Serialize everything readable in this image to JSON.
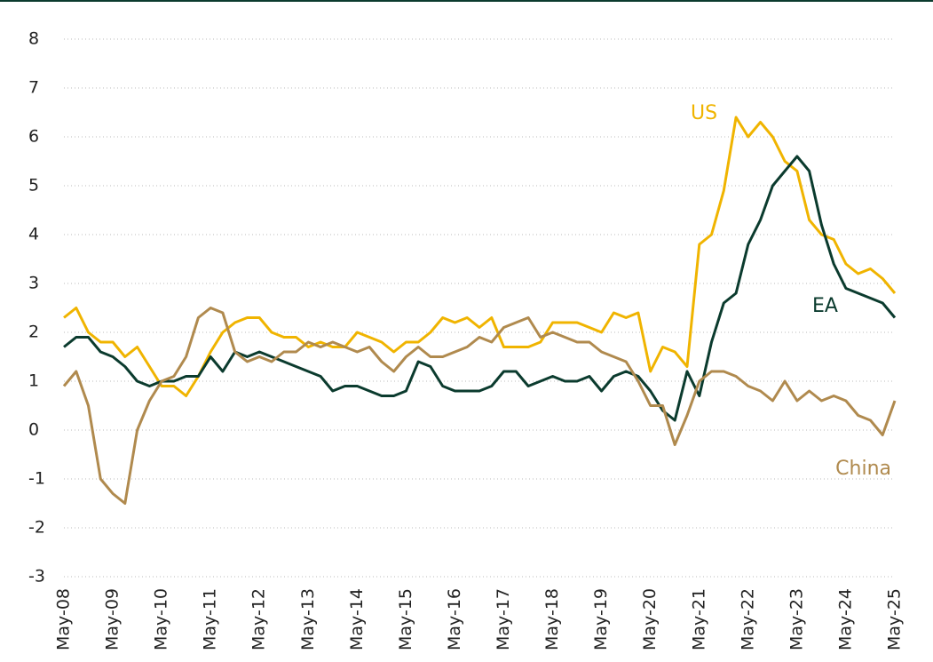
{
  "chart_data": {
    "type": "line",
    "categories": [
      "May-08",
      null,
      null,
      null,
      "May-09",
      null,
      null,
      null,
      "May-10",
      null,
      null,
      null,
      "May-11",
      null,
      null,
      null,
      "May-12",
      null,
      null,
      null,
      "May-13",
      null,
      null,
      null,
      "May-14",
      null,
      null,
      null,
      "May-15",
      null,
      null,
      null,
      "May-16",
      null,
      null,
      null,
      "May-17",
      null,
      null,
      null,
      "May-18",
      null,
      null,
      null,
      "May-19",
      null,
      null,
      null,
      "May-20",
      null,
      null,
      null,
      "May-21",
      null,
      null,
      null,
      "May-22",
      null,
      null,
      null,
      "May-23",
      null,
      null,
      null,
      "May-24",
      null,
      null,
      null,
      "May-25"
    ],
    "series": [
      {
        "name": "US",
        "color": "#f0b400",
        "values": [
          2.3,
          2.5,
          2.0,
          1.8,
          1.8,
          1.5,
          1.7,
          1.3,
          0.9,
          0.9,
          0.7,
          1.1,
          1.6,
          2.0,
          2.2,
          2.3,
          2.3,
          2.0,
          1.9,
          1.9,
          1.7,
          1.8,
          1.7,
          1.7,
          2.0,
          1.9,
          1.8,
          1.6,
          1.8,
          1.8,
          2.0,
          2.3,
          2.2,
          2.3,
          2.1,
          2.3,
          1.7,
          1.7,
          1.7,
          1.8,
          2.2,
          2.2,
          2.2,
          2.1,
          2.0,
          2.4,
          2.3,
          2.4,
          1.2,
          1.7,
          1.6,
          1.3,
          3.8,
          4.0,
          4.9,
          6.4,
          6.0,
          6.3,
          6.0,
          5.5,
          5.3,
          4.3,
          4.0,
          3.9,
          3.4,
          3.2,
          3.3,
          3.1,
          2.8
        ]
      },
      {
        "name": "EA",
        "color": "#0b3b2e",
        "values": [
          1.7,
          1.9,
          1.9,
          1.6,
          1.5,
          1.3,
          1.0,
          0.9,
          1.0,
          1.0,
          1.1,
          1.1,
          1.5,
          1.2,
          1.6,
          1.5,
          1.6,
          1.5,
          1.4,
          1.3,
          1.2,
          1.1,
          0.8,
          0.9,
          0.9,
          0.8,
          0.7,
          0.7,
          0.8,
          1.4,
          1.3,
          0.9,
          0.8,
          0.8,
          0.8,
          0.9,
          1.2,
          1.2,
          0.9,
          1.0,
          1.1,
          1.0,
          1.0,
          1.1,
          0.8,
          1.1,
          1.2,
          1.1,
          0.8,
          0.4,
          0.2,
          1.2,
          0.7,
          1.8,
          2.6,
          2.8,
          3.8,
          4.3,
          5.0,
          5.3,
          5.6,
          5.3,
          4.2,
          3.4,
          2.9,
          2.8,
          2.7,
          2.6,
          2.3
        ]
      },
      {
        "name": "China",
        "color": "#b08a4e",
        "values": [
          0.9,
          1.2,
          0.5,
          -1.0,
          -1.3,
          -1.5,
          0.0,
          0.6,
          1.0,
          1.1,
          1.5,
          2.3,
          2.5,
          2.4,
          1.6,
          1.4,
          1.5,
          1.4,
          1.6,
          1.6,
          1.8,
          1.7,
          1.8,
          1.7,
          1.6,
          1.7,
          1.4,
          1.2,
          1.5,
          1.7,
          1.5,
          1.5,
          1.6,
          1.7,
          1.9,
          1.8,
          2.1,
          2.2,
          2.3,
          1.9,
          2.0,
          1.9,
          1.8,
          1.8,
          1.6,
          1.5,
          1.4,
          1.0,
          0.5,
          0.5,
          -0.3,
          0.3,
          1.0,
          1.2,
          1.2,
          1.1,
          0.9,
          0.8,
          0.6,
          1.0,
          0.6,
          0.8,
          0.6,
          0.7,
          0.6,
          0.3,
          0.2,
          -0.1,
          0.6
        ]
      }
    ],
    "ylim": [
      -3,
      8
    ],
    "yticks": [
      -3,
      -2,
      -1,
      0,
      1,
      2,
      3,
      4,
      5,
      6,
      7,
      8
    ],
    "grid": true
  }
}
